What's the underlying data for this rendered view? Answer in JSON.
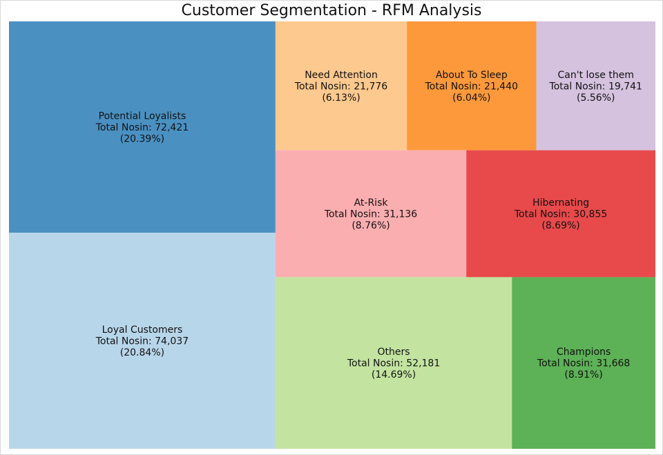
{
  "chart_data": {
    "type": "treemap",
    "title": "Customer Segmentation - RFM Analysis",
    "value_label": "Total Nosin",
    "segments": [
      {
        "name": "Loyal Customers",
        "value": 74037,
        "percent": "20.84%",
        "color": "#b8d6ea",
        "value_text": "74,037"
      },
      {
        "name": "Potential Loyalists",
        "value": 72421,
        "percent": "20.39%",
        "color": "#4a91c2",
        "value_text": "72,421"
      },
      {
        "name": "Others",
        "value": 52181,
        "percent": "14.69%",
        "color": "#c3e4a1",
        "value_text": "52,181"
      },
      {
        "name": "Champions",
        "value": 31668,
        "percent": "8.91%",
        "color": "#5db156",
        "value_text": "31,668"
      },
      {
        "name": "At-Risk",
        "value": 31136,
        "percent": "8.76%",
        "color": "#fbaeb0",
        "value_text": "31,136"
      },
      {
        "name": "Hibernating",
        "value": 30855,
        "percent": "8.69%",
        "color": "#e8494b",
        "value_text": "30,855"
      },
      {
        "name": "Need Attention",
        "value": 21776,
        "percent": "6.13%",
        "color": "#fdc98e",
        "value_text": "21,776"
      },
      {
        "name": "About To Sleep",
        "value": 21440,
        "percent": "6.04%",
        "color": "#fd993b",
        "value_text": "21,440"
      },
      {
        "name": "Can't lose them",
        "value": 19741,
        "percent": "5.56%",
        "color": "#d5c2df",
        "value_text": "19,741"
      }
    ]
  }
}
